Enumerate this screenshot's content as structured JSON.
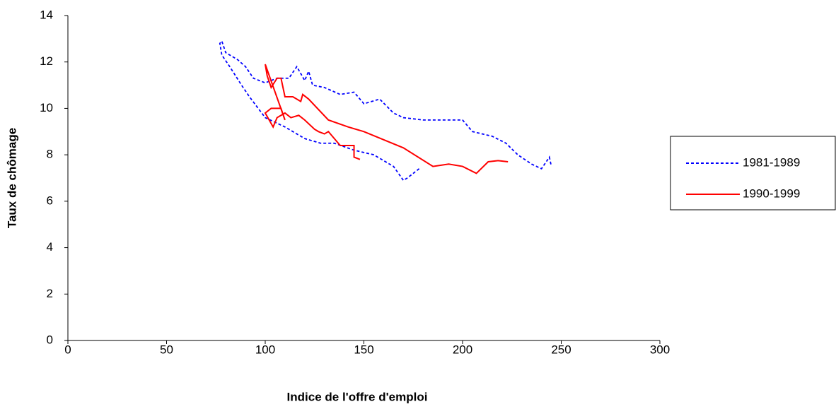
{
  "chart_data": {
    "type": "line",
    "xlabel": "Indice de l'offre d'emploi",
    "ylabel": "Taux de chômage",
    "xlim": [
      0,
      300
    ],
    "xticks": [
      0,
      50,
      100,
      150,
      200,
      250,
      300
    ],
    "ylim": [
      0,
      14
    ],
    "yticks": [
      0,
      2,
      4,
      6,
      8,
      10,
      12,
      14
    ],
    "legend": "right",
    "series": [
      {
        "name": "1981-1989",
        "color": "#0000ff",
        "dashed": true,
        "x": [
          178,
          172,
          170,
          165,
          155,
          145,
          135,
          128,
          120,
          110,
          100,
          92,
          88,
          82,
          78,
          77,
          78,
          80,
          86,
          90,
          94,
          100,
          106,
          112,
          116,
          120,
          122,
          124,
          130,
          138,
          145,
          150,
          158,
          165,
          170,
          180,
          200,
          205,
          215,
          222,
          228,
          235,
          240,
          244,
          245
        ],
        "values": [
          7.4,
          7.0,
          6.9,
          7.5,
          8.0,
          8.2,
          8.5,
          8.5,
          8.7,
          9.2,
          9.6,
          10.5,
          11.0,
          11.8,
          12.3,
          12.8,
          12.9,
          12.4,
          12.1,
          11.8,
          11.3,
          11.1,
          11.3,
          11.3,
          11.8,
          11.2,
          11.6,
          11.0,
          10.9,
          10.6,
          10.7,
          10.2,
          10.4,
          9.8,
          9.6,
          9.5,
          9.5,
          9.0,
          8.8,
          8.5,
          8.0,
          7.6,
          7.4,
          7.9,
          7.5
        ]
      },
      {
        "name": "1990-1999",
        "color": "#ff0000",
        "dashed": false,
        "x": [
          148,
          145,
          145,
          138,
          135,
          132,
          130,
          127,
          125,
          120,
          117,
          113,
          110,
          106,
          104,
          102,
          100,
          103,
          108,
          110,
          100,
          101,
          103,
          106,
          108,
          110,
          114,
          118,
          119,
          122,
          132,
          142,
          150,
          170,
          185,
          193,
          200,
          207,
          213,
          218,
          223
        ],
        "values": [
          7.8,
          7.9,
          8.4,
          8.4,
          8.7,
          9.0,
          8.9,
          9.0,
          9.1,
          9.5,
          9.7,
          9.6,
          9.8,
          9.6,
          9.2,
          9.5,
          9.8,
          10.0,
          10.0,
          9.5,
          11.9,
          11.4,
          10.9,
          11.3,
          11.3,
          10.5,
          10.5,
          10.3,
          10.6,
          10.4,
          9.5,
          9.2,
          9.0,
          8.3,
          7.5,
          7.6,
          7.5,
          7.2,
          7.7,
          7.75,
          7.7
        ]
      }
    ]
  }
}
